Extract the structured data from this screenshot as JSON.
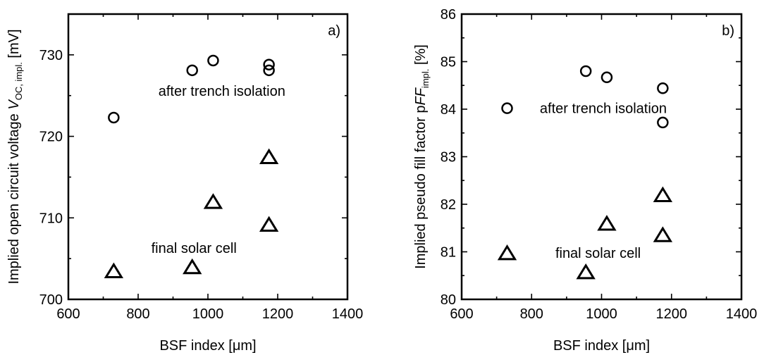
{
  "chart_data": [
    {
      "type": "scatter",
      "panel_label": "a)",
      "xlabel": "BSF index [μm]",
      "ylabel": {
        "prefix": "Implied open circuit voltage ",
        "var": "V",
        "sub": "OC, impl.",
        "suffix": " [mV]"
      },
      "xlim": [
        600,
        1400
      ],
      "ylim": [
        700,
        735
      ],
      "x_ticks": [
        600,
        800,
        1000,
        1200,
        1400
      ],
      "y_ticks": [
        700,
        710,
        720,
        730
      ],
      "grid": false,
      "series": [
        {
          "marker": "circle",
          "label": "after trench isolation",
          "x": [
            730,
            955,
            1015,
            1175,
            1175
          ],
          "y": [
            722.3,
            728.1,
            729.3,
            728.8,
            728.1
          ]
        },
        {
          "marker": "triangle",
          "label": "final solar cell",
          "x": [
            730,
            955,
            1015,
            1175,
            1175
          ],
          "y": [
            703.5,
            704.0,
            712.0,
            717.5,
            709.2
          ]
        }
      ],
      "annotations": [
        {
          "text": "after trench isolation",
          "x": 1040,
          "y": 725.6
        },
        {
          "text": "final solar cell",
          "x": 960,
          "y": 706.3
        }
      ]
    },
    {
      "type": "scatter",
      "panel_label": "b)",
      "xlabel": "BSF index [μm]",
      "ylabel": {
        "prefix": "Implied pseudo fill factor p",
        "var": "FF",
        "sub": "impl.",
        "suffix": " [%]"
      },
      "xlim": [
        600,
        1400
      ],
      "ylim": [
        80,
        86
      ],
      "x_ticks": [
        600,
        800,
        1000,
        1200,
        1400
      ],
      "y_ticks": [
        80,
        81,
        82,
        83,
        84,
        85,
        86
      ],
      "grid": false,
      "series": [
        {
          "marker": "circle",
          "label": "after trench isolation",
          "x": [
            730,
            955,
            1015,
            1175,
            1175
          ],
          "y": [
            84.02,
            84.8,
            84.67,
            84.44,
            83.72
          ]
        },
        {
          "marker": "triangle",
          "label": "final solar cell",
          "x": [
            730,
            955,
            1015,
            1175,
            1175
          ],
          "y": [
            80.98,
            80.58,
            81.6,
            82.2,
            81.36
          ]
        }
      ],
      "annotations": [
        {
          "text": "after trench isolation",
          "x": 1005,
          "y": 84.02
        },
        {
          "text": "final solar cell",
          "x": 990,
          "y": 80.98
        }
      ]
    }
  ]
}
